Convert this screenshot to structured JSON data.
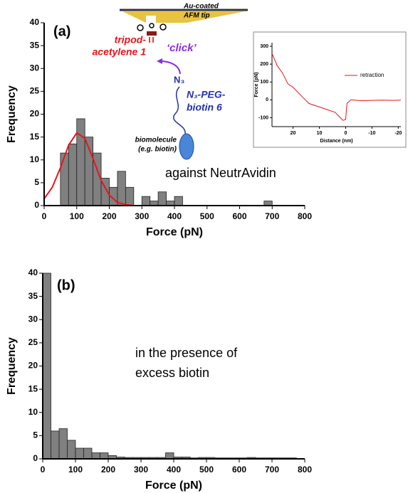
{
  "chart_data": [
    {
      "type": "histogram",
      "x_label": "Force (pN)",
      "y_label": "Frequency",
      "bins": [
        0,
        25,
        50,
        75,
        100,
        125,
        150,
        175,
        200,
        225,
        250,
        275,
        300,
        325,
        350,
        375,
        400,
        425,
        450,
        475,
        500,
        525,
        550,
        575,
        600,
        625,
        650,
        675,
        700,
        725,
        750,
        775,
        800
      ],
      "values": [
        0,
        0,
        11.5,
        13.5,
        19,
        15,
        11.5,
        6,
        4,
        7.5,
        4,
        0,
        2,
        1,
        3,
        1,
        2,
        0,
        0,
        0,
        0,
        0,
        0,
        0,
        0,
        0,
        0,
        1,
        0,
        0,
        0,
        0
      ],
      "color": "#808080",
      "fit": {
        "x": [
          0,
          25,
          50,
          75,
          100,
          125,
          150,
          175,
          200,
          225,
          250,
          275
        ],
        "values": [
          1.5,
          4.0,
          8.3,
          13.2,
          15.9,
          14.7,
          10.3,
          5.5,
          2.3,
          0.7,
          0.2,
          0
        ],
        "color": "#e8141a"
      },
      "xlim": [
        0,
        800
      ],
      "ylim": [
        0,
        40
      ],
      "xticks": [
        0,
        100,
        200,
        300,
        400,
        500,
        600,
        700,
        800
      ],
      "yticks": [
        0,
        5,
        10,
        15,
        20,
        25,
        30,
        35,
        40
      ],
      "annotations": {
        "panel": "(a)",
        "condition": [
          "against NeutrAvidin"
        ],
        "tip": [
          "Au-coated",
          "AFM tip"
        ],
        "linker": [
          "tripod-",
          "acetylene 1"
        ],
        "click": "‘click’",
        "azide": "N₃",
        "peg": [
          "N₃-PEG-",
          "biotin 6"
        ],
        "bio": [
          "biomolecule",
          "(e.g. biotin)"
        ]
      }
    },
    {
      "type": "line",
      "x_label": "Distance (nm)",
      "y_label": "Force (pN)",
      "x": [
        28,
        26,
        24,
        22,
        20,
        18,
        16,
        14,
        12,
        10,
        8,
        6,
        4,
        2,
        1,
        0,
        -0.5,
        -2,
        -6,
        -10,
        -14,
        -18,
        -21
      ],
      "series": [
        {
          "name": "retraction",
          "color": "#e8141a",
          "values": [
            260,
            190,
            150,
            90,
            70,
            40,
            10,
            -20,
            -30,
            -40,
            -50,
            -60,
            -70,
            -100,
            -115,
            -110,
            -20,
            0,
            -5,
            -3,
            -2,
            -3,
            -2
          ]
        }
      ],
      "xlim": [
        28,
        -21
      ],
      "ylim": [
        -150,
        320
      ],
      "xticks": [
        20,
        10,
        0,
        -10,
        -20
      ],
      "yticks": [
        -100,
        0,
        100,
        200,
        300
      ]
    },
    {
      "type": "histogram",
      "x_label": "Force (pN)",
      "y_label": "Frequency",
      "bins": [
        0,
        25,
        50,
        75,
        100,
        125,
        150,
        175,
        200,
        225,
        250,
        275,
        300,
        325,
        350,
        375,
        400,
        425,
        450,
        475,
        500,
        525,
        550,
        575,
        600,
        625,
        650,
        675,
        700,
        725,
        750,
        775,
        800
      ],
      "values": [
        40,
        6,
        6.5,
        4,
        2.3,
        2.3,
        1.3,
        1.3,
        0.7,
        0.4,
        0.3,
        0.3,
        0.3,
        0.3,
        0.3,
        1.3,
        0.4,
        0.4,
        0.2,
        0.3,
        0.3,
        0.2,
        0.2,
        0.2,
        0.2,
        0.3,
        0.2,
        0.2,
        0.2,
        0.2,
        0.2,
        0
      ],
      "color": "#808080",
      "xlim": [
        0,
        800
      ],
      "ylim": [
        0,
        40
      ],
      "xticks": [
        0,
        100,
        200,
        300,
        400,
        500,
        600,
        700,
        800
      ],
      "yticks": [
        0,
        5,
        10,
        15,
        20,
        25,
        30,
        35,
        40
      ],
      "annotations": {
        "panel": "(b)",
        "condition": [
          "in the presence of",
          "excess biotin"
        ]
      }
    }
  ]
}
